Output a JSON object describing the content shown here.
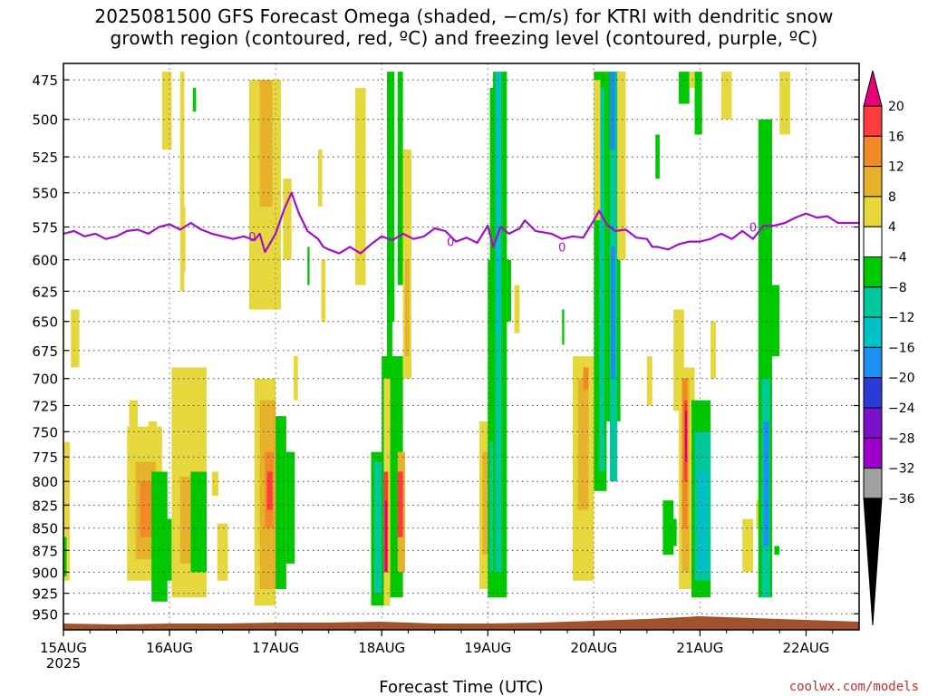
{
  "header": {
    "title_line1": "2025081500 GFS Forecast Omega (shaded, −cm/s) for KTRI with dendritic snow",
    "title_line2": "growth region (contoured, red, ºC) and freezing level (contoured, purple, ºC)"
  },
  "credit": "coolwx.com/models",
  "chart_data": {
    "type": "heatmap",
    "title": "2025081500 GFS Forecast Omega (shaded, −cm/s) for KTRI with dendritic snow growth region (contoured, red, ºC) and freezing level (contoured, purple, ºC)",
    "xlabel": "Forecast Time (UTC)",
    "ylabel": "",
    "x_ticks": [
      "15AUG",
      "16AUG",
      "17AUG",
      "18AUG",
      "19AUG",
      "20AUG",
      "21AUG",
      "22AUG"
    ],
    "x_tick_sublabel": "2025",
    "xlim_days": [
      0,
      7.5
    ],
    "y_ticks": [
      475,
      500,
      525,
      550,
      575,
      600,
      625,
      650,
      675,
      700,
      725,
      750,
      775,
      800,
      825,
      850,
      875,
      900,
      925,
      950
    ],
    "ylim": [
      465,
      970
    ],
    "y_scale": "log-pressure",
    "grid": true,
    "colorbar": {
      "levels": [
        20,
        16,
        12,
        8,
        4,
        -4,
        -8,
        -12,
        -16,
        -20,
        -24,
        -28,
        -32,
        -36
      ],
      "colors": [
        "#e8007a",
        "#ff3b3b",
        "#f08a24",
        "#e6b22c",
        "#e6d83c",
        "#ffffff",
        "#00c800",
        "#00c89a",
        "#00c0c8",
        "#1e8ff0",
        "#2a3cd8",
        "#7a10c8",
        "#9a00c8",
        "#a0a0a0",
        "#000000"
      ]
    },
    "ground_color": "#a0522d",
    "freezing_level_color": "#a010c8",
    "freezing_level_label": "0",
    "freezing_level": [
      [
        0.0,
        580
      ],
      [
        0.1,
        578
      ],
      [
        0.2,
        582
      ],
      [
        0.3,
        580
      ],
      [
        0.4,
        584
      ],
      [
        0.5,
        582
      ],
      [
        0.6,
        578
      ],
      [
        0.7,
        577
      ],
      [
        0.8,
        580
      ],
      [
        0.9,
        575
      ],
      [
        1.0,
        573
      ],
      [
        1.1,
        577
      ],
      [
        1.2,
        572
      ],
      [
        1.3,
        577
      ],
      [
        1.4,
        580
      ],
      [
        1.5,
        582
      ],
      [
        1.6,
        584
      ],
      [
        1.7,
        582
      ],
      [
        1.8,
        585
      ],
      [
        1.85,
        580
      ],
      [
        1.9,
        594
      ],
      [
        2.0,
        580
      ],
      [
        2.08,
        562
      ],
      [
        2.15,
        550
      ],
      [
        2.22,
        565
      ],
      [
        2.3,
        578
      ],
      [
        2.4,
        584
      ],
      [
        2.45,
        590
      ],
      [
        2.5,
        592
      ],
      [
        2.6,
        595
      ],
      [
        2.7,
        590
      ],
      [
        2.8,
        595
      ],
      [
        2.9,
        588
      ],
      [
        3.0,
        582
      ],
      [
        3.1,
        585
      ],
      [
        3.2,
        580
      ],
      [
        3.3,
        584
      ],
      [
        3.4,
        582
      ],
      [
        3.5,
        576
      ],
      [
        3.6,
        578
      ],
      [
        3.7,
        586
      ],
      [
        3.8,
        583
      ],
      [
        3.9,
        587
      ],
      [
        4.0,
        574
      ],
      [
        4.05,
        590
      ],
      [
        4.12,
        575
      ],
      [
        4.2,
        580
      ],
      [
        4.3,
        576
      ],
      [
        4.35,
        570
      ],
      [
        4.45,
        578
      ],
      [
        4.6,
        580
      ],
      [
        4.7,
        584
      ],
      [
        4.8,
        582
      ],
      [
        4.9,
        583
      ],
      [
        5.0,
        570
      ],
      [
        5.05,
        563
      ],
      [
        5.12,
        573
      ],
      [
        5.2,
        578
      ],
      [
        5.3,
        577
      ],
      [
        5.4,
        583
      ],
      [
        5.5,
        584
      ],
      [
        5.55,
        590
      ],
      [
        5.6,
        590
      ],
      [
        5.7,
        592
      ],
      [
        5.8,
        588
      ],
      [
        5.9,
        586
      ],
      [
        6.0,
        586
      ],
      [
        6.1,
        584
      ],
      [
        6.2,
        580
      ],
      [
        6.3,
        584
      ],
      [
        6.4,
        578
      ],
      [
        6.5,
        584
      ],
      [
        6.6,
        574
      ],
      [
        6.7,
        574
      ],
      [
        6.8,
        572
      ],
      [
        6.9,
        568
      ],
      [
        7.0,
        565
      ],
      [
        7.1,
        568
      ],
      [
        7.2,
        567
      ],
      [
        7.3,
        572
      ],
      [
        7.5,
        572
      ]
    ],
    "omega_cells": [
      [
        0.07,
        0.15,
        640,
        690,
        "#e6d83c"
      ],
      [
        0.0,
        0.06,
        760,
        910,
        "#e6d83c"
      ],
      [
        0.0,
        0.03,
        860,
        905,
        "#00c800"
      ],
      [
        0.93,
        1.02,
        470,
        520,
        "#e6d83c"
      ],
      [
        1.1,
        1.14,
        470,
        625,
        "#e6d83c"
      ],
      [
        1.12,
        1.15,
        560,
        610,
        "#e6d83c"
      ],
      [
        1.22,
        1.25,
        480,
        495,
        "#00c800"
      ],
      [
        0.8,
        0.84,
        755,
        805,
        "#e6d83c"
      ],
      [
        0.8,
        0.88,
        740,
        780,
        "#e6d83c"
      ],
      [
        0.62,
        0.7,
        720,
        760,
        "#e6d83c"
      ],
      [
        0.6,
        0.93,
        745,
        910,
        "#e6d83c"
      ],
      [
        0.68,
        0.87,
        780,
        885,
        "#e6b22c"
      ],
      [
        0.72,
        0.84,
        800,
        860,
        "#f08a24"
      ],
      [
        0.83,
        0.98,
        790,
        935,
        "#00c800"
      ],
      [
        0.93,
        1.02,
        840,
        910,
        "#00c800"
      ],
      [
        1.02,
        1.35,
        690,
        930,
        "#e6d83c"
      ],
      [
        1.1,
        1.3,
        795,
        890,
        "#e6b22c"
      ],
      [
        1.4,
        1.46,
        790,
        815,
        "#e6d83c"
      ],
      [
        1.45,
        1.55,
        845,
        910,
        "#e6d83c"
      ],
      [
        1.2,
        1.35,
        790,
        900,
        "#00c800"
      ],
      [
        1.75,
        2.05,
        475,
        640,
        "#e6d83c"
      ],
      [
        1.85,
        1.97,
        475,
        560,
        "#e6b22c"
      ],
      [
        1.8,
        2.0,
        700,
        940,
        "#e6d83c"
      ],
      [
        1.85,
        2.0,
        720,
        920,
        "#e6b22c"
      ],
      [
        1.9,
        1.98,
        770,
        850,
        "#f08a24"
      ],
      [
        1.92,
        1.97,
        790,
        830,
        "#ff3b3b"
      ],
      [
        2.0,
        2.1,
        735,
        920,
        "#00c800"
      ],
      [
        2.1,
        2.18,
        770,
        890,
        "#00c800"
      ],
      [
        2.07,
        2.15,
        540,
        600,
        "#e6d83c"
      ],
      [
        2.17,
        2.21,
        680,
        720,
        "#e6d83c"
      ],
      [
        2.3,
        2.32,
        590,
        620,
        "#00c800"
      ],
      [
        2.43,
        2.47,
        600,
        650,
        "#e6d83c"
      ],
      [
        2.4,
        2.44,
        520,
        560,
        "#e6d83c"
      ],
      [
        2.78,
        2.82,
        480,
        510,
        "#e6d83c"
      ],
      [
        2.75,
        2.85,
        480,
        620,
        "#e6d83c"
      ],
      [
        2.9,
        3.07,
        770,
        940,
        "#00c800"
      ],
      [
        2.93,
        3.05,
        780,
        925,
        "#00c89a"
      ],
      [
        3.0,
        3.2,
        680,
        930,
        "#00c800"
      ],
      [
        3.05,
        3.1,
        540,
        870,
        "#00c800"
      ],
      [
        3.05,
        3.12,
        470,
        650,
        "#00c800"
      ],
      [
        3.15,
        3.2,
        470,
        620,
        "#00c800"
      ],
      [
        3.02,
        3.08,
        700,
        940,
        "#e6d83c"
      ],
      [
        3.02,
        3.06,
        790,
        900,
        "#ff3b3b"
      ],
      [
        3.03,
        3.05,
        820,
        900,
        "#e8007a"
      ],
      [
        3.2,
        3.28,
        520,
        700,
        "#e6d83c"
      ],
      [
        3.22,
        3.26,
        600,
        680,
        "#e6b22c"
      ],
      [
        3.15,
        3.22,
        770,
        900,
        "#e6b22c"
      ],
      [
        3.15,
        3.2,
        790,
        860,
        "#ff3b3b"
      ],
      [
        3.92,
        4.06,
        740,
        920,
        "#e6d83c"
      ],
      [
        3.95,
        4.05,
        770,
        880,
        "#e6b22c"
      ],
      [
        4.0,
        4.17,
        600,
        930,
        "#00c800"
      ],
      [
        4.02,
        4.15,
        760,
        900,
        "#00c89a"
      ],
      [
        4.05,
        4.12,
        790,
        900,
        "#00c0c8"
      ],
      [
        4.05,
        4.18,
        470,
        930,
        "#00c800"
      ],
      [
        4.07,
        4.13,
        470,
        900,
        "#00c89a"
      ],
      [
        4.08,
        4.12,
        470,
        660,
        "#00c0c8"
      ],
      [
        4.02,
        4.07,
        480,
        600,
        "#00c800"
      ],
      [
        4.18,
        4.22,
        600,
        650,
        "#00c800"
      ],
      [
        4.25,
        4.3,
        620,
        660,
        "#e6d83c"
      ],
      [
        4.7,
        4.72,
        640,
        670,
        "#00c800"
      ],
      [
        4.8,
        5.0,
        680,
        910,
        "#e6d83c"
      ],
      [
        4.85,
        4.95,
        700,
        830,
        "#e6b22c"
      ],
      [
        4.9,
        4.95,
        690,
        710,
        "#f08a24"
      ],
      [
        5.0,
        5.12,
        470,
        810,
        "#00c800"
      ],
      [
        5.05,
        5.1,
        480,
        790,
        "#00c89a"
      ],
      [
        5.12,
        5.25,
        470,
        740,
        "#00c800"
      ],
      [
        5.15,
        5.22,
        470,
        800,
        "#00c89a"
      ],
      [
        5.15,
        5.2,
        470,
        520,
        "#1e8ff0"
      ],
      [
        5.16,
        5.2,
        590,
        700,
        "#1e8ff0"
      ],
      [
        5.22,
        5.3,
        470,
        600,
        "#e6d83c"
      ],
      [
        5.0,
        5.06,
        475,
        570,
        "#e6d83c"
      ],
      [
        5.5,
        5.55,
        680,
        725,
        "#e6d83c"
      ],
      [
        5.75,
        5.85,
        640,
        730,
        "#e6d83c"
      ],
      [
        5.65,
        5.75,
        820,
        880,
        "#00c800"
      ],
      [
        5.7,
        5.78,
        840,
        870,
        "#00c800"
      ],
      [
        5.8,
        5.95,
        690,
        920,
        "#e6d83c"
      ],
      [
        5.83,
        5.9,
        700,
        900,
        "#e6b22c"
      ],
      [
        5.83,
        5.88,
        700,
        850,
        "#f08a24"
      ],
      [
        5.85,
        5.88,
        720,
        800,
        "#ff3b3b"
      ],
      [
        5.86,
        5.88,
        730,
        780,
        "#e8007a"
      ],
      [
        5.92,
        6.1,
        720,
        930,
        "#00c800"
      ],
      [
        5.95,
        6.1,
        750,
        910,
        "#00c89a"
      ],
      [
        5.98,
        6.07,
        790,
        900,
        "#00c0c8"
      ],
      [
        5.8,
        5.9,
        470,
        490,
        "#00c800"
      ],
      [
        5.95,
        6.02,
        470,
        510,
        "#00c800"
      ],
      [
        5.58,
        5.62,
        510,
        540,
        "#00c800"
      ],
      [
        5.9,
        5.95,
        470,
        480,
        "#e6d83c"
      ],
      [
        6.2,
        6.3,
        470,
        500,
        "#e6d83c"
      ],
      [
        6.1,
        6.15,
        650,
        700,
        "#e6d83c"
      ],
      [
        6.4,
        6.5,
        840,
        900,
        "#e6d83c"
      ],
      [
        6.53,
        6.6,
        820,
        850,
        "#e6d83c"
      ],
      [
        6.55,
        6.68,
        500,
        930,
        "#00c800"
      ],
      [
        6.58,
        6.66,
        700,
        930,
        "#00c89a"
      ],
      [
        6.6,
        6.65,
        740,
        870,
        "#1e8ff0"
      ],
      [
        6.68,
        6.75,
        620,
        680,
        "#00c800"
      ],
      [
        6.7,
        6.75,
        870,
        880,
        "#00c800"
      ],
      [
        6.75,
        6.85,
        470,
        510,
        "#e6d83c"
      ]
    ]
  }
}
